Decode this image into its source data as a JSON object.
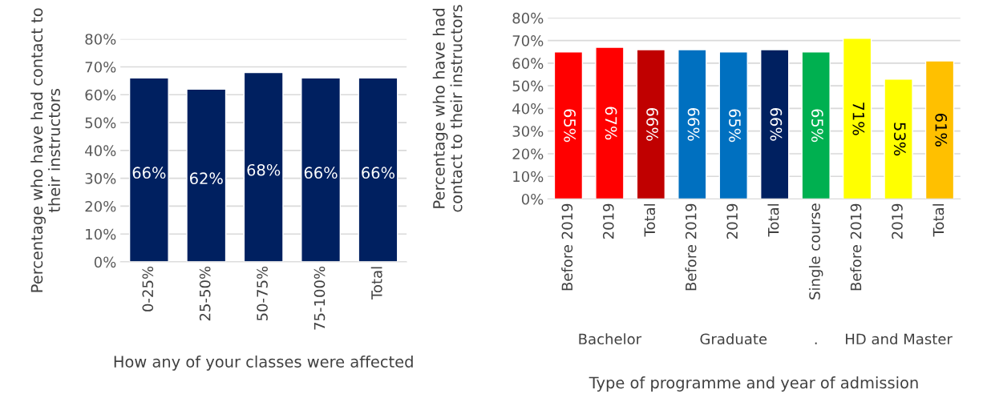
{
  "chart_data": [
    {
      "type": "bar",
      "xlabel": "How any of your classes were affected",
      "ylabel": "Percentage who have had contact to their instructors",
      "categories": [
        "0-25%",
        "25-50%",
        "50-75%",
        "75-100%",
        "Total"
      ],
      "values": [
        66,
        62,
        68,
        66,
        66
      ],
      "color": "#002060",
      "value_labels": [
        "66%",
        "62%",
        "68%",
        "66%",
        "66%"
      ],
      "ylim": [
        0,
        80
      ],
      "yticks": [
        {
          "value": 0,
          "label": "0%"
        },
        {
          "value": 10,
          "label": "10%"
        },
        {
          "value": 20,
          "label": "20%"
        },
        {
          "value": 30,
          "label": "30%"
        },
        {
          "value": 40,
          "label": "40%"
        },
        {
          "value": 50,
          "label": "50%"
        },
        {
          "value": 60,
          "label": "60%"
        },
        {
          "value": 70,
          "label": "70%"
        },
        {
          "value": 80,
          "label": "80%"
        }
      ],
      "grid": "y"
    },
    {
      "type": "bar",
      "xlabel": "Type of programme and year of admission",
      "ylabel": "Percentage who have had contact to their instructors",
      "categories": [
        "Before 2019",
        "2019",
        "Total",
        "Before 2019",
        "2019",
        "Total",
        "Single course",
        "Before 2019",
        "2019",
        "Total"
      ],
      "values": [
        65,
        67,
        66,
        66,
        65,
        66,
        65,
        71,
        53,
        61
      ],
      "colors": [
        "#ff0000",
        "#ff0000",
        "#c00000",
        "#0070c0",
        "#0070c0",
        "#002060",
        "#00b050",
        "#ffff00",
        "#ffff00",
        "#ffc000"
      ],
      "value_labels": [
        "65%",
        "67%",
        "66%",
        "66%",
        "65%",
        "66%",
        "65%",
        "71%",
        "53%",
        "61%"
      ],
      "annotations": [
        "Bachelor",
        "Graduate",
        ".",
        "HD and Master"
      ],
      "ylim": [
        0,
        80
      ],
      "yticks": [
        {
          "value": 0,
          "label": "0%"
        },
        {
          "value": 10,
          "label": "10%"
        },
        {
          "value": 20,
          "label": "20%"
        },
        {
          "value": 30,
          "label": "30%"
        },
        {
          "value": 40,
          "label": "40%"
        },
        {
          "value": 50,
          "label": "50%"
        },
        {
          "value": 60,
          "label": "60%"
        },
        {
          "value": 70,
          "label": "70%"
        },
        {
          "value": 80,
          "label": "80%"
        }
      ],
      "grid": "y"
    }
  ]
}
